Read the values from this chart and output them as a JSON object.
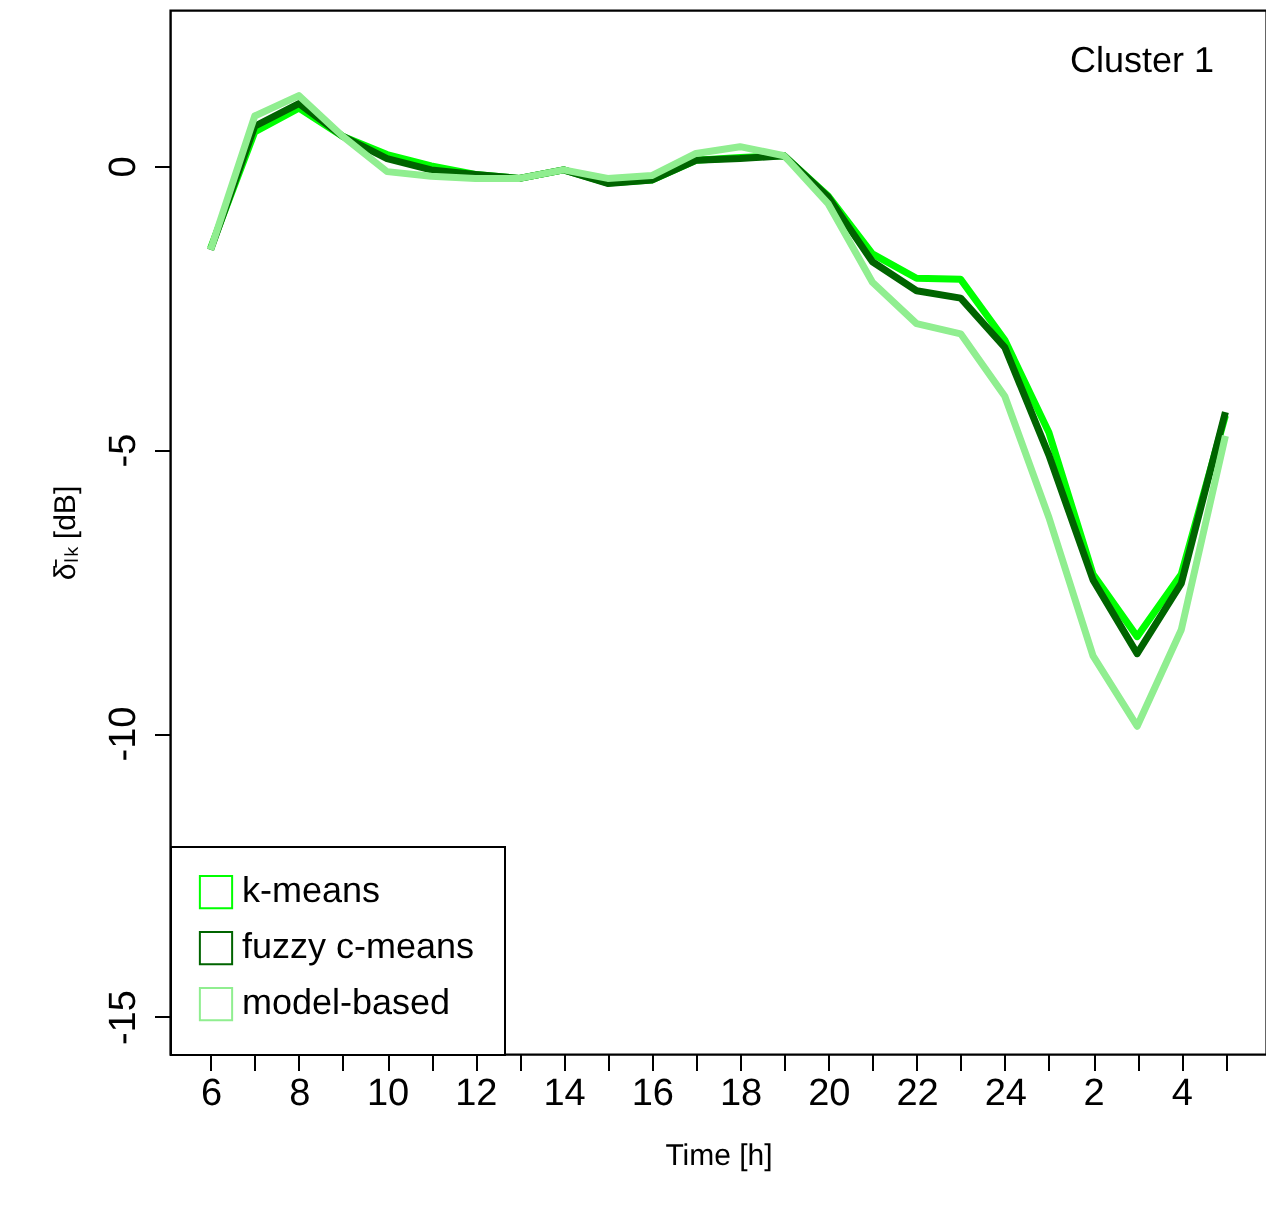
{
  "chart_data": {
    "type": "line",
    "xlabel": "Time [h]",
    "ylabel": "δ̄ₗₖ [dB]",
    "annotations": [
      "Cluster 1"
    ],
    "categories": [
      "6",
      null,
      "8",
      null,
      "10",
      null,
      "12",
      null,
      "14",
      null,
      "16",
      null,
      "18",
      null,
      "20",
      null,
      "22",
      null,
      "24",
      null,
      "2",
      null,
      "4",
      null
    ],
    "series": [
      {
        "name": "k-means",
        "color": "#00ff00",
        "values": [
          -1.45,
          0.6,
          1.02,
          0.52,
          0.2,
          0.0,
          -0.15,
          -0.22,
          -0.07,
          -0.3,
          -0.25,
          0.1,
          0.15,
          0.18,
          -0.53,
          -1.55,
          -1.98,
          -2.0,
          -3.07,
          -4.7,
          -7.2,
          -8.3,
          -7.2,
          -4.4
        ]
      },
      {
        "name": "fuzzy c-means",
        "color": "#006400",
        "values": [
          -1.48,
          0.7,
          1.1,
          0.52,
          0.13,
          -0.07,
          -0.15,
          -0.22,
          -0.07,
          -0.31,
          -0.25,
          0.1,
          0.13,
          0.18,
          -0.55,
          -1.69,
          -2.2,
          -2.33,
          -3.2,
          -5.1,
          -7.3,
          -8.6,
          -7.36,
          -4.34
        ]
      },
      {
        "name": "model-based",
        "color": "#90ee90",
        "values": [
          -1.48,
          0.88,
          1.24,
          0.52,
          -0.1,
          -0.18,
          -0.22,
          -0.22,
          -0.07,
          -0.22,
          -0.17,
          0.22,
          0.34,
          0.18,
          -0.67,
          -2.05,
          -2.78,
          -2.96,
          -4.06,
          -6.2,
          -8.64,
          -9.88,
          -8.18,
          -4.76
        ]
      }
    ],
    "ylim": [
      -15.66,
      2.75
    ],
    "yticks": [
      -15,
      -10,
      -5,
      0
    ],
    "legend": "bottom left",
    "grid": false,
    "marker": "none",
    "line_style": "solid"
  }
}
